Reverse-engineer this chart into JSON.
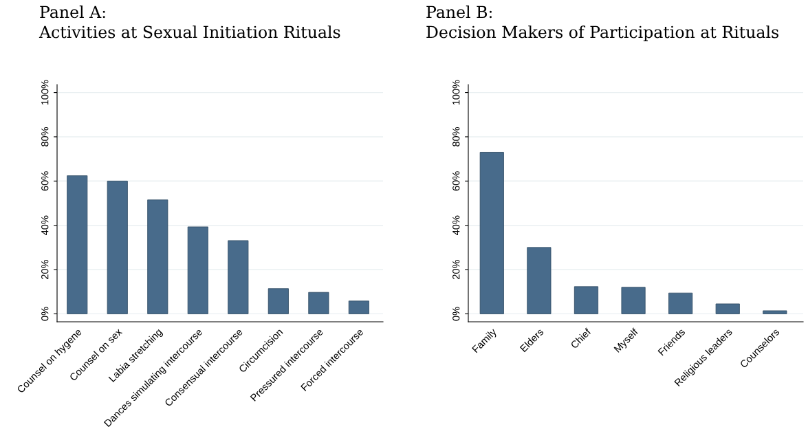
{
  "chart_data": [
    {
      "type": "bar",
      "title": "Panel A:\nActivities at Sexual Initiation Rituals",
      "categories": [
        "Counsel on hygene",
        "Counsel on sex",
        "Labia stretching",
        "Dances simulating intercourse",
        "Consensual intercourse",
        "Circumcision",
        "Pressured intercourse",
        "Forced intercourse"
      ],
      "values": [
        62.4,
        60.0,
        51.5,
        39.3,
        33.1,
        11.4,
        9.7,
        5.8
      ],
      "color": "#486b8b",
      "ylim": [
        -3.6,
        103.6
      ],
      "yticks": [
        {
          "value": 0,
          "label": "0%"
        },
        {
          "value": 20,
          "label": "20%"
        },
        {
          "value": 40,
          "label": "40%"
        },
        {
          "value": 60,
          "label": "60%"
        },
        {
          "value": 80,
          "label": "80%"
        },
        {
          "value": 100,
          "label": "100%"
        }
      ],
      "grid": "y"
    },
    {
      "type": "bar",
      "title": "Panel B:\nDecision Makers of Participation at Rituals",
      "categories": [
        "Family",
        "Elders",
        "Chief",
        "Myself",
        "Friends",
        "Religious leaders",
        "Counselors"
      ],
      "values": [
        73.0,
        30.0,
        12.3,
        12.0,
        9.4,
        4.5,
        1.4
      ],
      "color": "#486b8b",
      "ylim": [
        -3.6,
        103.6
      ],
      "yticks": [
        {
          "value": 0,
          "label": "0%"
        },
        {
          "value": 20,
          "label": "20%"
        },
        {
          "value": 40,
          "label": "40%"
        },
        {
          "value": 60,
          "label": "60%"
        },
        {
          "value": 80,
          "label": "80%"
        },
        {
          "value": 100,
          "label": "100%"
        }
      ],
      "grid": "y"
    }
  ]
}
